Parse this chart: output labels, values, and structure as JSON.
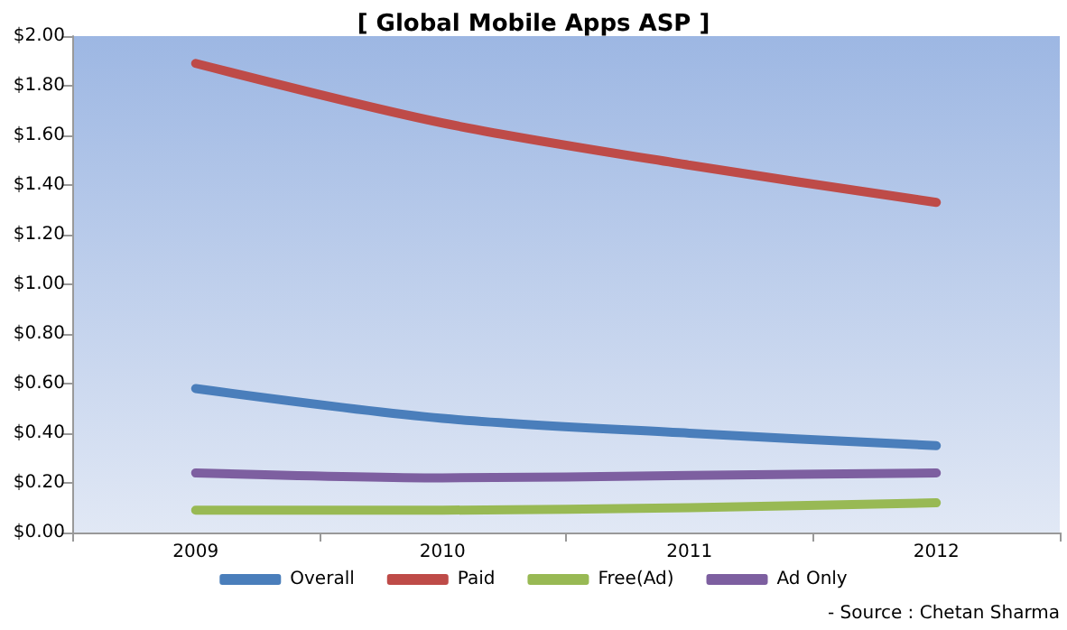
{
  "chart_data": {
    "type": "line",
    "title": "[ Global Mobile Apps ASP ]",
    "categories": [
      "2009",
      "2010",
      "2011",
      "2012"
    ],
    "series": [
      {
        "name": "Overall",
        "color": "#4a7ebb",
        "values": [
          0.58,
          0.46,
          0.4,
          0.35
        ]
      },
      {
        "name": "Paid",
        "color": "#be4b48",
        "values": [
          1.89,
          1.65,
          1.48,
          1.33
        ]
      },
      {
        "name": "Free(Ad)",
        "color": "#98b954",
        "values": [
          0.09,
          0.09,
          0.1,
          0.12
        ]
      },
      {
        "name": "Ad Only",
        "color": "#7d5fa0",
        "values": [
          0.24,
          0.22,
          0.23,
          0.24
        ]
      }
    ],
    "ylim": [
      0,
      2
    ],
    "yticks": [
      {
        "value": 0,
        "label": "$0.00"
      },
      {
        "value": 0.2,
        "label": "$0.20"
      },
      {
        "value": 0.4,
        "label": "$0.40"
      },
      {
        "value": 0.6,
        "label": "$0.60"
      },
      {
        "value": 0.8,
        "label": "$0.80"
      },
      {
        "value": 1,
        "label": "$1.00"
      },
      {
        "value": 1.2,
        "label": "$1.20"
      },
      {
        "value": 1.4,
        "label": "$1.40"
      },
      {
        "value": 1.6,
        "label": "$1.60"
      },
      {
        "value": 1.8,
        "label": "$1.80"
      },
      {
        "value": 2,
        "label": "$2.00"
      }
    ],
    "grid": false,
    "legend": "bottom",
    "marker": "none",
    "line_style": "solid",
    "annotations": [
      "- Source : Chetan Sharma"
    ]
  }
}
